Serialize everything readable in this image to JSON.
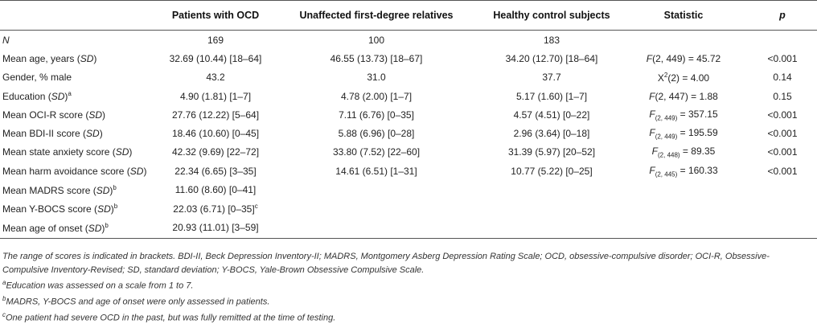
{
  "columns": {
    "label": "",
    "ocd": "Patients with OCD",
    "relatives": "Unaffected first-degree relatives",
    "controls": "Healthy control subjects",
    "statistic": "Statistic",
    "p": "p"
  },
  "rows": [
    {
      "label": "N",
      "ocd": "169",
      "relatives": "100",
      "controls": "183",
      "stat": "",
      "p": ""
    },
    {
      "label_main": "Mean age, years",
      "label_sd": "SD",
      "ocd": "32.69 (10.44) [18–64]",
      "relatives": "46.55 (13.73) [18–67]",
      "controls": "34.20 (12.70) [18–64]",
      "stat_f": "F",
      "stat_rest": "(2, 449) = 45.72",
      "p": "<0.001"
    },
    {
      "label": "Gender, % male",
      "ocd": "43.2",
      "relatives": "31.0",
      "controls": "37.7",
      "stat_x": "X",
      "stat_sup": "2",
      "stat_rest": "(2) = 4.00",
      "p": "0.14"
    },
    {
      "label_main": "Education",
      "label_sd": "SD",
      "label_sup": "a",
      "ocd": "4.90 (1.81) [1–7]",
      "relatives": "4.78 (2.00) [1–7]",
      "controls": "5.17 (1.60) [1–7]",
      "stat_f": "F",
      "stat_rest": "(2, 447) = 1.88",
      "p": "0.15"
    },
    {
      "label_main": "Mean OCI-R score",
      "label_sd": "SD",
      "ocd": "27.76 (12.22) [5–64]",
      "relatives": "7.11 (6.76) [0–35]",
      "controls": "4.57 (4.51) [0–22]",
      "stat_f": "F",
      "stat_sub": "(2, 449)",
      "stat_rest": " = 357.15",
      "p": "<0.001"
    },
    {
      "label_main": "Mean BDI-II score",
      "label_sd": "SD",
      "ocd": "18.46 (10.60) [0–45]",
      "relatives": "5.88 (6.96) [0–28]",
      "controls": "2.96 (3.64) [0–18]",
      "stat_f": "F",
      "stat_sub": "(2, 449)",
      "stat_rest": " = 195.59",
      "p": "<0.001"
    },
    {
      "label_main": "Mean state anxiety score",
      "label_sd": "SD",
      "ocd": "42.32 (9.69) [22–72]",
      "relatives": "33.80 (7.52) [22–60]",
      "controls": "31.39 (5.97) [20–52]",
      "stat_f": "F",
      "stat_sub": "(2, 448)",
      "stat_rest": " = 89.35",
      "p": "<0.001"
    },
    {
      "label_main": "Mean harm avoidance score",
      "label_sd": "SD",
      "ocd": "22.34 (6.65) [3–35]",
      "relatives": "14.61 (6.51) [1–31]",
      "controls": "10.77 (5.22) [0–25]",
      "stat_f": "F",
      "stat_sub": "(2, 445)",
      "stat_rest": " = 160.33",
      "p": "<0.001"
    },
    {
      "label_main": "Mean MADRS score",
      "label_sd": "SD",
      "label_sup": "b",
      "ocd": "11.60 (8.60) [0–41]"
    },
    {
      "label_main": "Mean Y-BOCS score",
      "label_sd": "SD",
      "label_sup": "b",
      "ocd": "22.03 (6.71) [0–35]",
      "ocd_sup": "c"
    },
    {
      "label_main": "Mean age of onset",
      "label_sd": "SD",
      "label_sup": "b",
      "ocd": "20.93 (11.01) [3–59]"
    }
  ],
  "footnotes": {
    "note": "The range of scores is indicated in brackets. BDI-II, Beck Depression Inventory-II; MADRS, Montgomery Asberg Depression Rating Scale; OCD, obsessive-compulsive disorder; OCI-R, Obsessive-Compulsive Inventory-Revised; SD, standard deviation; Y-BOCS, Yale-Brown Obsessive Compulsive Scale.",
    "a_mark": "a",
    "a_text": "Education was assessed on a scale from 1 to 7.",
    "b_mark": "b",
    "b_text": "MADRS, Y-BOCS and age of onset were only assessed in patients.",
    "c_mark": "c",
    "c_text": "One patient had severe OCD in the past, but was fully remitted at the time of testing."
  }
}
